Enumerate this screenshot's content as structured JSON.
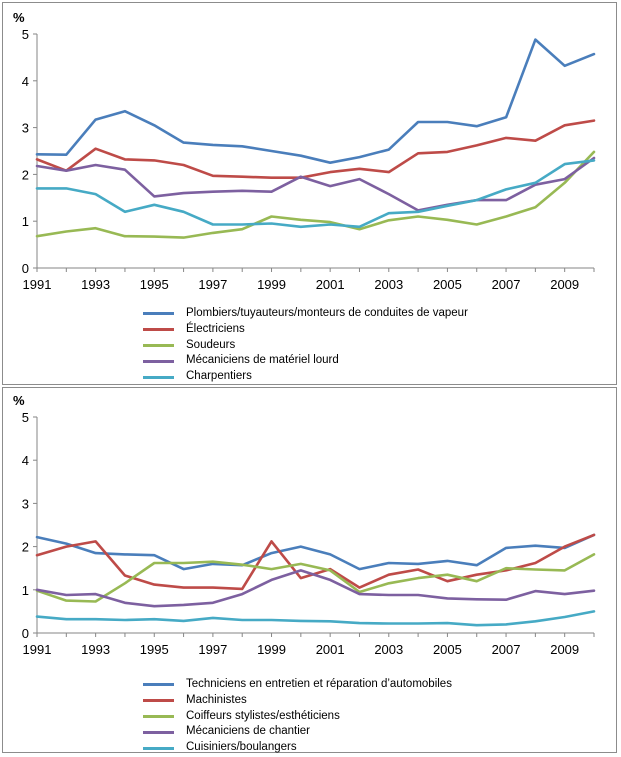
{
  "chart_data": [
    {
      "type": "line",
      "title": "",
      "ylabel": "%",
      "xlabel": "",
      "ylim": [
        0,
        5
      ],
      "yticks": [
        "0",
        "1",
        "2",
        "3",
        "4",
        "5"
      ],
      "xlim": [
        1991,
        2010
      ],
      "xticks": [
        "1991",
        "1993",
        "1995",
        "1997",
        "1999",
        "2001",
        "2003",
        "2005",
        "2007",
        "2009"
      ],
      "x": [
        1991,
        1992,
        1993,
        1994,
        1995,
        1996,
        1997,
        1998,
        1999,
        2000,
        2001,
        2002,
        2003,
        2004,
        2005,
        2006,
        2007,
        2008,
        2009,
        2010
      ],
      "legend_position": "bottom",
      "series": [
        {
          "name": "Plombiers/tuyauteurs/monteurs de conduites de vapeur",
          "color": "#4a7ebb",
          "values": [
            2.43,
            2.42,
            3.17,
            3.35,
            3.05,
            2.68,
            2.63,
            2.6,
            2.5,
            2.4,
            2.25,
            2.37,
            2.53,
            3.12,
            3.12,
            3.03,
            3.22,
            4.88,
            4.32,
            4.57
          ]
        },
        {
          "name": "Électriciens",
          "color": "#be4b48",
          "values": [
            2.32,
            2.08,
            2.55,
            2.32,
            2.3,
            2.2,
            1.97,
            1.95,
            1.93,
            1.93,
            2.05,
            2.12,
            2.05,
            2.45,
            2.48,
            2.62,
            2.78,
            2.72,
            3.05,
            3.15
          ]
        },
        {
          "name": "Soudeurs",
          "color": "#98b954",
          "values": [
            0.68,
            0.78,
            0.85,
            0.68,
            0.67,
            0.65,
            0.75,
            0.83,
            1.1,
            1.03,
            0.98,
            0.83,
            1.02,
            1.1,
            1.03,
            0.93,
            1.1,
            1.3,
            1.82,
            2.48
          ]
        },
        {
          "name": "Mécaniciens de matériel lourd",
          "color": "#7d60a0",
          "values": [
            2.18,
            2.08,
            2.2,
            2.1,
            1.53,
            1.6,
            1.63,
            1.65,
            1.63,
            1.95,
            1.75,
            1.9,
            1.58,
            1.23,
            1.35,
            1.45,
            1.45,
            1.78,
            1.9,
            2.35
          ]
        },
        {
          "name": "Charpentiers",
          "color": "#46aac5",
          "values": [
            1.7,
            1.7,
            1.58,
            1.2,
            1.35,
            1.2,
            0.93,
            0.93,
            0.95,
            0.88,
            0.93,
            0.88,
            1.17,
            1.2,
            1.33,
            1.45,
            1.68,
            1.82,
            2.22,
            2.3
          ]
        }
      ]
    },
    {
      "type": "line",
      "title": "",
      "ylabel": "%",
      "xlabel": "",
      "ylim": [
        0,
        5
      ],
      "yticks": [
        "0",
        "1",
        "2",
        "3",
        "4",
        "5"
      ],
      "xlim": [
        1991,
        2010
      ],
      "xticks": [
        "1991",
        "1993",
        "1995",
        "1997",
        "1999",
        "2001",
        "2003",
        "2005",
        "2007",
        "2009"
      ],
      "x": [
        1991,
        1992,
        1993,
        1994,
        1995,
        1996,
        1997,
        1998,
        1999,
        2000,
        2001,
        2002,
        2003,
        2004,
        2005,
        2006,
        2007,
        2008,
        2009,
        2010
      ],
      "legend_position": "bottom",
      "series": [
        {
          "name": "Techniciens en entretien et réparation d’automobiles",
          "color": "#4a7ebb",
          "values": [
            2.22,
            2.07,
            1.85,
            1.82,
            1.8,
            1.48,
            1.6,
            1.57,
            1.85,
            2.0,
            1.82,
            1.48,
            1.62,
            1.6,
            1.67,
            1.57,
            1.97,
            2.02,
            1.97,
            2.27
          ]
        },
        {
          "name": "Machinistes",
          "color": "#be4b48",
          "values": [
            1.8,
            2.0,
            2.12,
            1.33,
            1.12,
            1.05,
            1.05,
            1.02,
            2.12,
            1.27,
            1.48,
            1.05,
            1.35,
            1.47,
            1.2,
            1.35,
            1.45,
            1.62,
            2.0,
            2.27
          ]
        },
        {
          "name": "Coiffeurs stylistes/esthéticiens",
          "color": "#98b954",
          "values": [
            0.98,
            0.75,
            0.73,
            1.15,
            1.62,
            1.62,
            1.65,
            1.58,
            1.48,
            1.6,
            1.45,
            0.95,
            1.15,
            1.27,
            1.35,
            1.2,
            1.5,
            1.47,
            1.45,
            1.82
          ]
        },
        {
          "name": "Mécaniciens de chantier",
          "color": "#7d60a0",
          "values": [
            1.0,
            0.88,
            0.9,
            0.7,
            0.62,
            0.65,
            0.7,
            0.9,
            1.23,
            1.45,
            1.23,
            0.9,
            0.88,
            0.88,
            0.8,
            0.78,
            0.77,
            0.97,
            0.9,
            0.98
          ]
        },
        {
          "name": "Cuisiniers/boulangers",
          "color": "#46aac5",
          "values": [
            0.38,
            0.32,
            0.32,
            0.3,
            0.32,
            0.28,
            0.35,
            0.3,
            0.3,
            0.28,
            0.27,
            0.23,
            0.22,
            0.22,
            0.23,
            0.18,
            0.2,
            0.27,
            0.37,
            0.5
          ]
        }
      ]
    }
  ]
}
